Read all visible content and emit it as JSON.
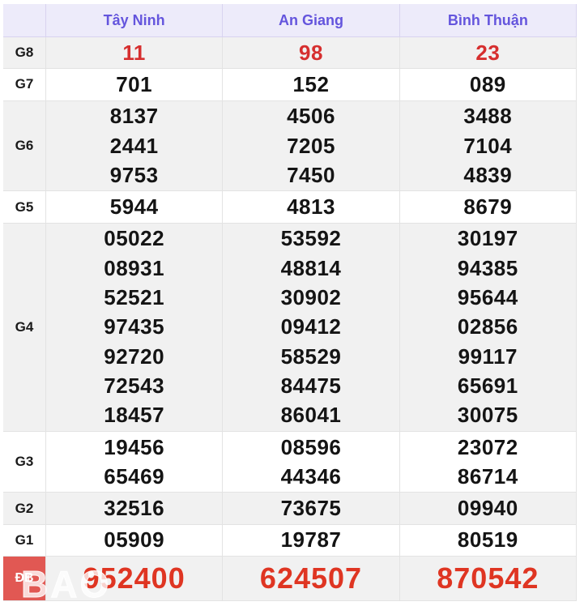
{
  "chart_data": {
    "type": "table",
    "title": "",
    "columns": [
      "",
      "Tây Ninh",
      "An Giang",
      "Bình Thuận"
    ],
    "rows": [
      {
        "id": "g8",
        "label": "G8",
        "emphasis": "red",
        "cells": [
          [
            "11"
          ],
          [
            "98"
          ],
          [
            "23"
          ]
        ]
      },
      {
        "id": "g7",
        "label": "G7",
        "emphasis": "none",
        "cells": [
          [
            "701"
          ],
          [
            "152"
          ],
          [
            "089"
          ]
        ]
      },
      {
        "id": "g6",
        "label": "G6",
        "emphasis": "none",
        "cells": [
          [
            "8137",
            "2441",
            "9753"
          ],
          [
            "4506",
            "7205",
            "7450"
          ],
          [
            "3488",
            "7104",
            "4839"
          ]
        ]
      },
      {
        "id": "g5",
        "label": "G5",
        "emphasis": "none",
        "cells": [
          [
            "5944"
          ],
          [
            "4813"
          ],
          [
            "8679"
          ]
        ]
      },
      {
        "id": "g4",
        "label": "G4",
        "emphasis": "none",
        "cells": [
          [
            "05022",
            "08931",
            "52521",
            "97435",
            "92720",
            "72543",
            "18457"
          ],
          [
            "53592",
            "48814",
            "30902",
            "09412",
            "58529",
            "84475",
            "86041"
          ],
          [
            "30197",
            "94385",
            "95644",
            "02856",
            "99117",
            "65691",
            "30075"
          ]
        ]
      },
      {
        "id": "g3",
        "label": "G3",
        "emphasis": "none",
        "cells": [
          [
            "19456",
            "65469"
          ],
          [
            "08596",
            "44346"
          ],
          [
            "23072",
            "86714"
          ]
        ]
      },
      {
        "id": "g2",
        "label": "G2",
        "emphasis": "none",
        "cells": [
          [
            "32516"
          ],
          [
            "73675"
          ],
          [
            "09940"
          ]
        ]
      },
      {
        "id": "g1",
        "label": "G1",
        "emphasis": "none",
        "cells": [
          [
            "05909"
          ],
          [
            "19787"
          ],
          [
            "80519"
          ]
        ]
      },
      {
        "id": "db",
        "label": "ĐB",
        "emphasis": "red-large",
        "cells": [
          [
            "952400"
          ],
          [
            "624507"
          ],
          [
            "870542"
          ]
        ]
      }
    ],
    "layout": {
      "grid": "striped-rows",
      "legend": "none"
    }
  },
  "watermark": {
    "text": "BAO"
  },
  "colors": {
    "header_bg": "#edebfa",
    "header_text": "#6455dd",
    "header_border": "#d8d3ef",
    "shaded_row_bg": "#f1f1f1",
    "row_bg": "#ffffff",
    "border": "#e3e3e3",
    "red_number": "#d62f2f",
    "jackpot_number": "#df3522",
    "jackpot_label_bg": "#e15853"
  }
}
